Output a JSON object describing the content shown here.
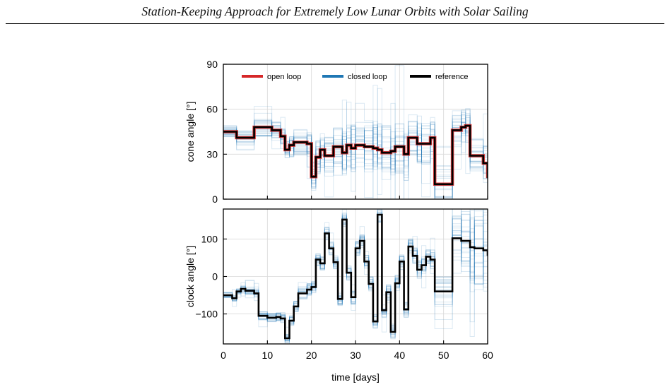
{
  "header": {
    "title": "Station-Keeping Approach for Extremely Low Lunar Orbits with Solar Sailing"
  },
  "colors": {
    "open_loop": "#d62728",
    "closed_loop": "#1f77b4",
    "reference": "#000000",
    "grid": "#d9d9d9"
  },
  "chart_data": [
    {
      "type": "line",
      "xlabel": "",
      "ylabel": "cone angle [°]",
      "xlim": [
        0,
        60
      ],
      "ylim": [
        0,
        90
      ],
      "yticks": [
        0,
        30,
        60,
        90
      ],
      "xticks": [
        0,
        10,
        20,
        30,
        40,
        50,
        60
      ],
      "grid": true,
      "legend": {
        "placement": "top",
        "entries": [
          "open loop",
          "closed loop",
          "reference"
        ]
      },
      "x_edges": [
        0,
        3,
        7,
        11,
        13,
        14,
        15,
        16,
        19,
        20,
        21,
        22,
        23,
        25,
        27,
        28,
        29,
        30,
        32,
        34,
        35,
        36,
        38,
        39,
        41,
        42,
        44,
        45,
        47,
        48,
        52,
        54,
        55,
        56,
        59,
        60
      ],
      "series": [
        {
          "name": "reference",
          "values": [
            45,
            41,
            48,
            46,
            42,
            33,
            36,
            38,
            37,
            15,
            28,
            33,
            29,
            35,
            31,
            36,
            34,
            36,
            35,
            34,
            33,
            31,
            32,
            35,
            30,
            41,
            37,
            37,
            41,
            10,
            46,
            48,
            49,
            29,
            24,
            14
          ]
        },
        {
          "name": "open loop",
          "values": [
            45,
            41,
            48,
            46,
            42,
            33,
            36,
            38,
            37,
            15,
            28,
            33,
            29,
            35,
            31,
            36,
            34,
            36,
            35,
            34,
            33,
            31,
            32,
            35,
            30,
            41,
            37,
            37,
            41,
            10,
            46,
            48,
            49,
            29,
            24,
            14
          ]
        }
      ],
      "closed_loop_spread": [
        4,
        5,
        6,
        6,
        6,
        6,
        8,
        9,
        9,
        10,
        12,
        12,
        14,
        14,
        16,
        16,
        16,
        16,
        18,
        18,
        18,
        18,
        18,
        18,
        18,
        16,
        14,
        14,
        14,
        14,
        12,
        12,
        12,
        12,
        12,
        10
      ]
    },
    {
      "type": "line",
      "xlabel": "time [days]",
      "ylabel": "clock angle [°]",
      "xlim": [
        0,
        60
      ],
      "ylim": [
        -180,
        180
      ],
      "yticks": [
        -100,
        0,
        100
      ],
      "xticks": [
        0,
        10,
        20,
        30,
        40,
        50,
        60
      ],
      "xticklabels": [
        "0",
        "10",
        "20",
        "30",
        "40",
        "50",
        "60"
      ],
      "grid": true,
      "x_edges": [
        0,
        2,
        3,
        4,
        5,
        7,
        8,
        10,
        12,
        13,
        14,
        15,
        16,
        17,
        19,
        20,
        21,
        22,
        23,
        24,
        25,
        26,
        27,
        28,
        29,
        30,
        31,
        32,
        33,
        34,
        35,
        36,
        37,
        38,
        39,
        40,
        41,
        42,
        43,
        44,
        45,
        46,
        47,
        48,
        52,
        54,
        56,
        57,
        59,
        60
      ],
      "series": [
        {
          "name": "reference",
          "values": [
            -50,
            -58,
            -40,
            -33,
            -38,
            -45,
            -105,
            -110,
            -108,
            -112,
            -165,
            -118,
            -80,
            -45,
            -35,
            -28,
            45,
            35,
            115,
            75,
            38,
            -60,
            152,
            10,
            -55,
            75,
            95,
            40,
            -20,
            -120,
            165,
            -90,
            -42,
            -148,
            -18,
            40,
            -88,
            80,
            55,
            18,
            30,
            53,
            45,
            -40,
            102,
            95,
            78,
            75,
            70,
            55
          ]
        }
      ],
      "closed_loop_spread": [
        8,
        8,
        8,
        10,
        10,
        10,
        12,
        12,
        12,
        12,
        12,
        14,
        16,
        16,
        16,
        16,
        16,
        18,
        18,
        18,
        18,
        18,
        18,
        20,
        20,
        20,
        20,
        20,
        20,
        20,
        20,
        20,
        22,
        22,
        22,
        22,
        22,
        22,
        22,
        24,
        24,
        24,
        28,
        40,
        60,
        80,
        100,
        110,
        120,
        120
      ]
    }
  ]
}
